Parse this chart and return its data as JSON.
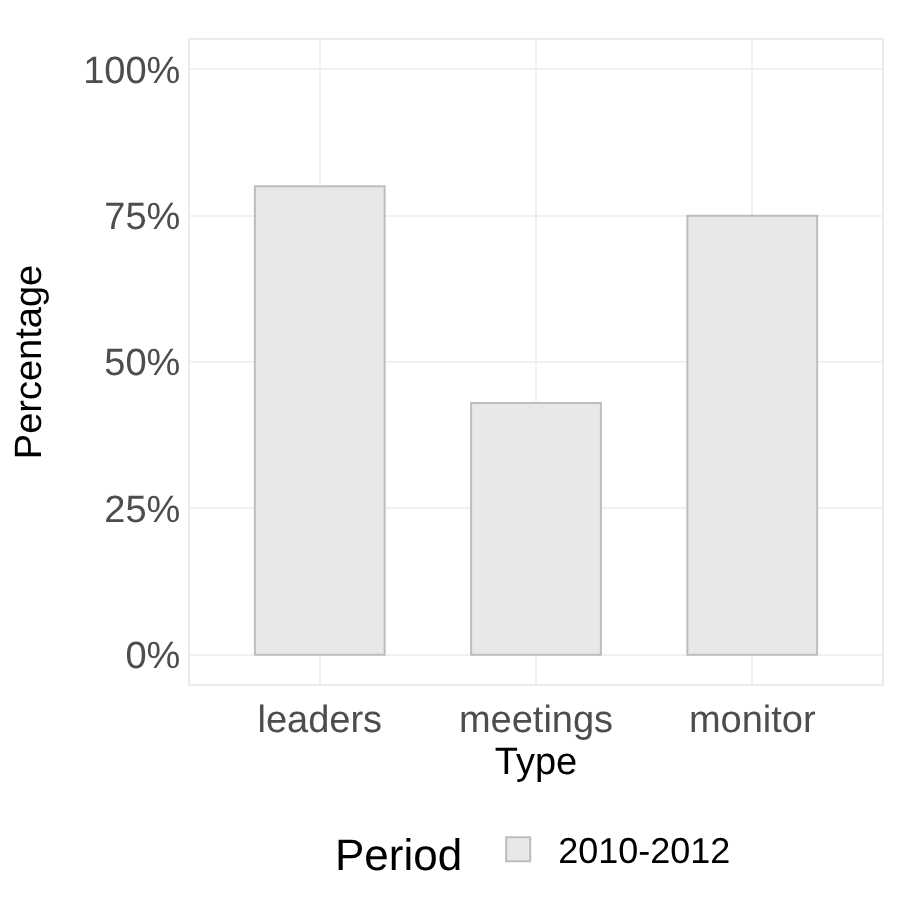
{
  "chart_data": {
    "type": "bar",
    "xlabel": "Type",
    "ylabel": "Percentage",
    "legend_title": "Period",
    "categories": [
      "leaders",
      "meetings",
      "monitor"
    ],
    "series": [
      {
        "name": "2010-2012",
        "color": "#e8e8e8",
        "values": [
          80,
          43,
          75
        ]
      }
    ],
    "ylim": [
      -5,
      105
    ],
    "yticks": [
      {
        "value": 0,
        "label": "0%"
      },
      {
        "value": 25,
        "label": "25%"
      },
      {
        "value": 50,
        "label": "50%"
      },
      {
        "value": 75,
        "label": "75%"
      },
      {
        "value": 100,
        "label": "100%"
      }
    ],
    "grid": true,
    "legend": "bottom"
  }
}
